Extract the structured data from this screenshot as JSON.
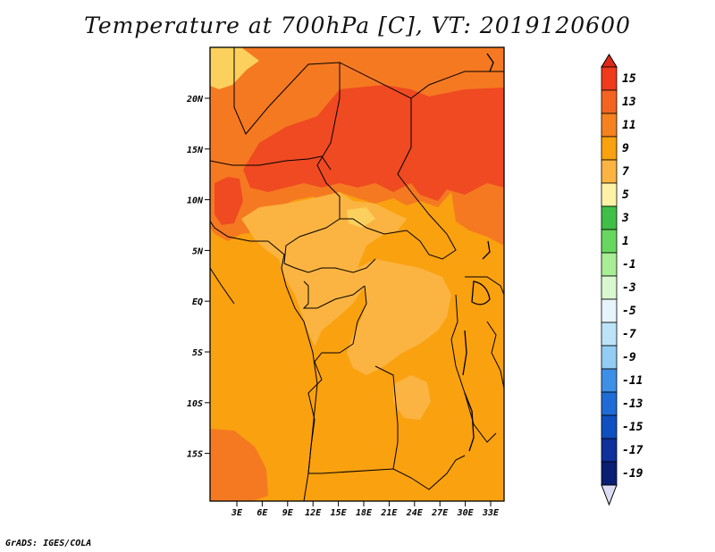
{
  "title": "Temperature at 700hPa [C], VT: 2019120600",
  "credit": "GrADS: IGES/COLA",
  "map": {
    "lat_ticks": [
      "20N",
      "15N",
      "10N",
      "5N",
      "EQ",
      "5S",
      "10S",
      "15S"
    ],
    "lon_ticks": [
      "3E",
      "6E",
      "9E",
      "12E",
      "15E",
      "18E",
      "21E",
      "24E",
      "27E",
      "30E",
      "33E"
    ],
    "fill_colors": {
      "c5_7": "#fbd05d",
      "c7_9": "#fbb441",
      "c9_11": "#f9a10f",
      "c11_13": "#f57921",
      "c13_15": "#ef4a21"
    }
  },
  "colorbar": {
    "labels": [
      "15",
      "13",
      "11",
      "9",
      "7",
      "5",
      "3",
      "1",
      "-1",
      "-3",
      "-5",
      "-7",
      "-9",
      "-11",
      "-13",
      "-15",
      "-17",
      "-19"
    ],
    "colors": [
      "#ef3a1e",
      "#f36420",
      "#f5821f",
      "#f9a10f",
      "#fbb441",
      "#fbd05d",
      "#fdf3a7",
      "#3fbf47",
      "#67d85f",
      "#a7ee96",
      "#d9f8d0",
      "#e6f4fb",
      "#bde3f8",
      "#93cdf4",
      "#6aafef",
      "#3e8fe7",
      "#1f6cd7",
      "#0f4fc0",
      "#0d309a",
      "#0a1e74"
    ],
    "under_color": "#dcdcf5",
    "over_color": "#dd2a18"
  }
}
